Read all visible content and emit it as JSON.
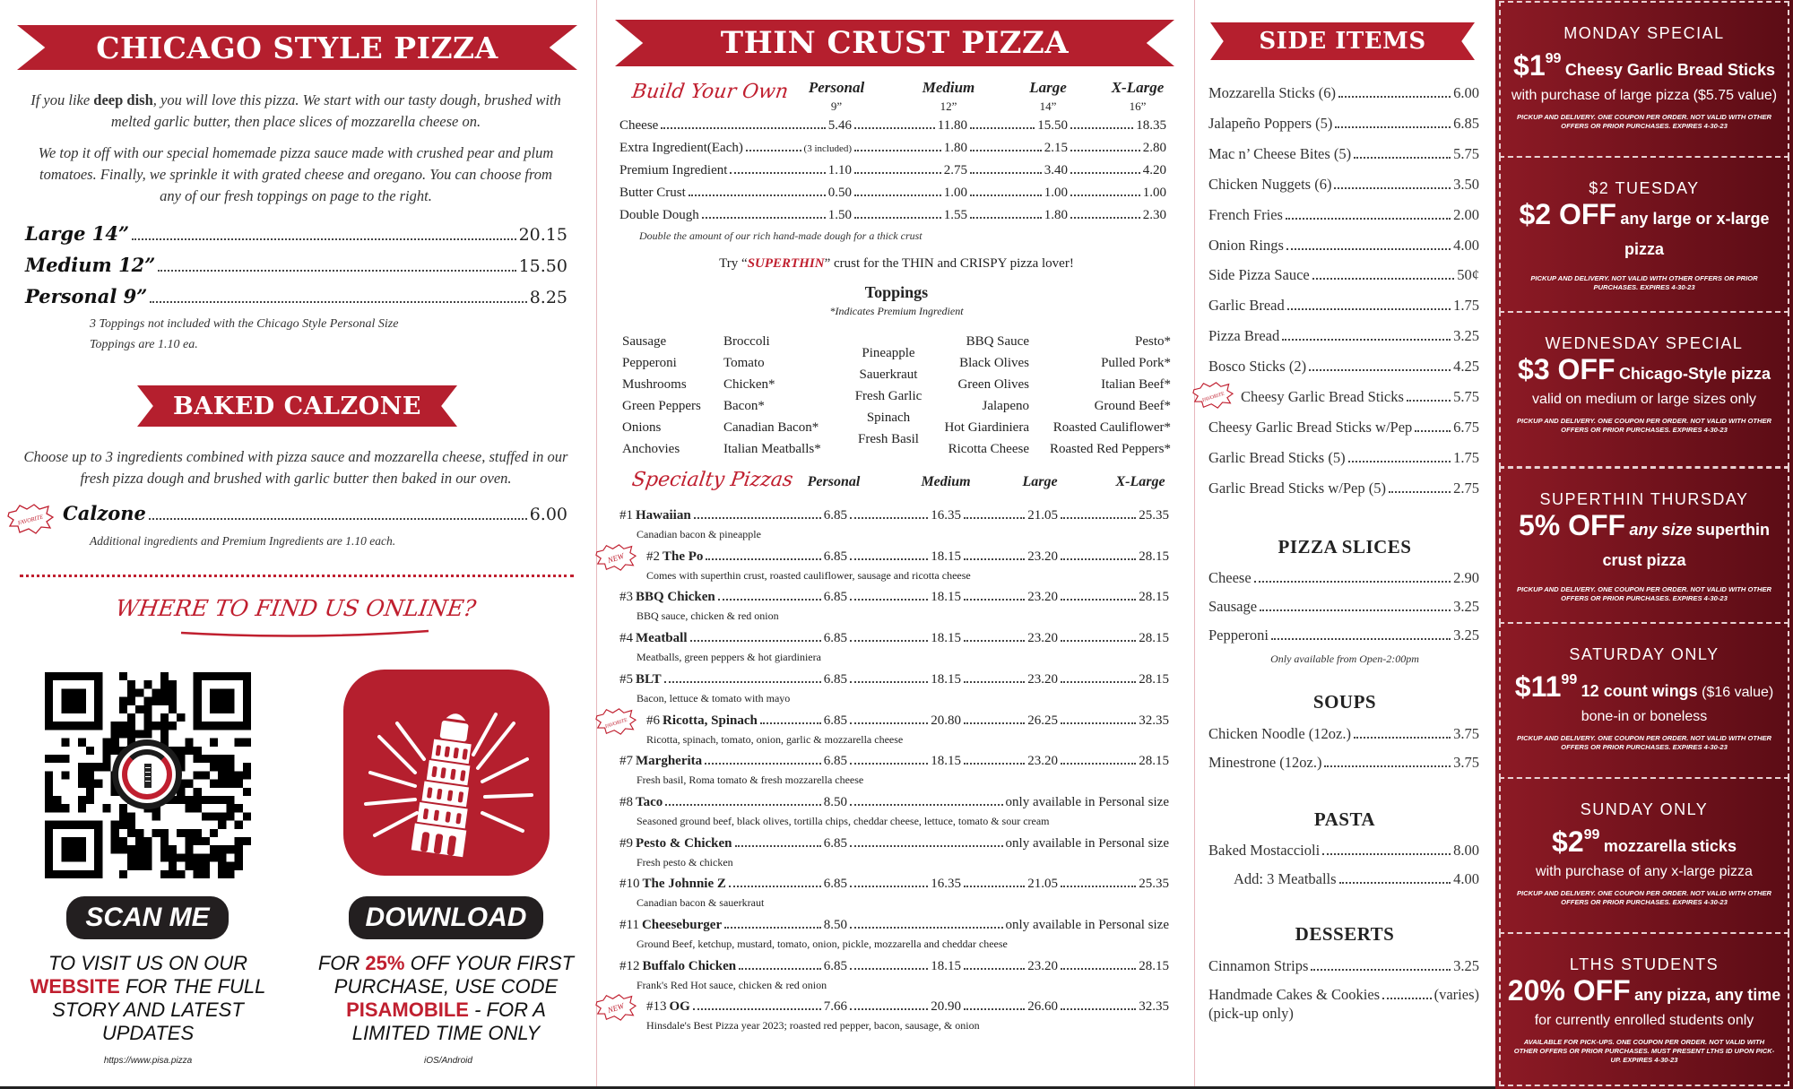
{
  "colors": {
    "brand_red": "#b51f2e",
    "coupon_bg": "#7a1420",
    "text": "#222222"
  },
  "chicago": {
    "title": "CHICAGO STYLE PIZZA",
    "intro1": [
      "If you like ",
      "deep dish",
      ", you will love this pizza. We start with our tasty dough, brushed with melted garlic butter, then place slices of mozzarella cheese on."
    ],
    "intro2": "We top it off with our special homemade pizza sauce made with crushed  pear and plum tomatoes.  Finally, we sprinkle it with grated cheese and oregano.  You can choose from any of our fresh toppings on page to the right.",
    "sizes": [
      {
        "label": "Large 14”",
        "price": "20.15"
      },
      {
        "label": "Medium 12”",
        "price": "15.50"
      },
      {
        "label": "Personal 9”",
        "price": "8.25"
      }
    ],
    "note1": "3 Toppings not included with the Chicago Style Personal Size",
    "note2": "Toppings are 1.10 ea."
  },
  "calzone": {
    "title": "BAKED CALZONE",
    "desc": "Choose up to 3 ingredients combined with pizza sauce and mozzarella cheese, stuffed in our fresh pizza dough and brushed with garlic butter then baked in our oven.",
    "badge": "FAVORITE",
    "label": "Calzone",
    "price": "6.00",
    "note": "Additional ingredients and Premium Ingredients are 1.10 each."
  },
  "online": {
    "heading": "WHERE TO FIND US ONLINE?",
    "qr_logo": "PISA PIZZA • CHICAGO'S THIN CRUST",
    "scan_label": "SCAN ME",
    "scan_text": [
      "TO VISIT US ON OUR ",
      "WEBSITE",
      " FOR THE FULL STORY AND LATEST UPDATES"
    ],
    "url": "https://www.pisa.pizza",
    "download_label": "DOWNLOAD",
    "download_text": [
      "FOR ",
      "25%",
      " OFF YOUR FIRST PURCHASE, USE CODE ",
      "PISAMOBILE",
      " - FOR A LIMITED TIME ONLY"
    ],
    "platforms": "iOS/Android",
    "app_icon": "leaning-tower-icon"
  },
  "thin": {
    "title": "THIN CRUST PIZZA",
    "build_title": "Build Your Own",
    "columns": [
      "Personal",
      "Medium",
      "Large",
      "X-Large"
    ],
    "sizes": [
      "9”",
      "12”",
      "14”",
      "16”"
    ],
    "rows": [
      {
        "label": "Cheese",
        "prices": [
          "5.46",
          "11.80",
          "15.50",
          "18.35"
        ]
      },
      {
        "label": "Extra Ingredient(Each)",
        "prices": [
          "(3 included)",
          "1.80",
          "2.15",
          "2.80"
        ]
      },
      {
        "label": "Premium Ingredient",
        "prices": [
          "1.10",
          "2.75",
          "3.40",
          "4.20"
        ]
      },
      {
        "label": "Butter Crust",
        "prices": [
          "0.50",
          "1.00",
          "1.00",
          "1.00"
        ]
      },
      {
        "label": "Double Dough",
        "prices": [
          "1.50",
          "1.55",
          "1.80",
          "2.30"
        ]
      }
    ],
    "double_note": "Double the amount of our rich hand-made dough for a thick crust",
    "superthin": [
      "Try “",
      "SUPERTHIN",
      "” crust for the THIN and CRISPY pizza lover!"
    ],
    "toppings_title": "Toppings",
    "toppings_note": "*Indicates Premium Ingredient",
    "toppings": [
      [
        "Sausage",
        "Pepperoni",
        "Mushrooms",
        "Green Peppers",
        "Onions",
        "Anchovies"
      ],
      [
        "Broccoli",
        "Tomato",
        "Chicken*",
        "Bacon*",
        "Canadian Bacon*",
        "Italian Meatballs*"
      ],
      [
        "Pineapple",
        "Sauerkraut",
        "Fresh Garlic",
        "Spinach",
        "Fresh Basil"
      ],
      [
        "BBQ Sauce",
        "Black Olives",
        "Green Olives",
        "Jalapeno",
        "Hot Giardiniera",
        "Ricotta Cheese"
      ],
      [
        "Pesto*",
        "Pulled Pork*",
        "Italian Beef*",
        "Ground Beef*",
        "Roasted Cauliflower*",
        "Roasted Red Peppers*"
      ]
    ],
    "specialty_title": "Specialty Pizzas",
    "personal_only": "only available in Personal size",
    "pizzas": [
      {
        "num": "#1",
        "name": "Hawaiian",
        "prices": [
          "6.85",
          "16.35",
          "21.05",
          "25.35"
        ],
        "desc": "Canadian bacon & pineapple"
      },
      {
        "num": "#2",
        "name": "The Po",
        "badge": "NEW",
        "prices": [
          "6.85",
          "18.15",
          "23.20",
          "28.15"
        ],
        "desc": "Comes with superthin crust, roasted cauliflower, sausage and ricotta cheese"
      },
      {
        "num": "#3",
        "name": "BBQ Chicken",
        "prices": [
          "6.85",
          "18.15",
          "23.20",
          "28.15"
        ],
        "desc": "BBQ sauce, chicken & red onion"
      },
      {
        "num": "#4",
        "name": "Meatball",
        "prices": [
          "6.85",
          "18.15",
          "23.20",
          "28.15"
        ],
        "desc": "Meatballs, green peppers & hot giardiniera"
      },
      {
        "num": "#5",
        "name": "BLT",
        "prices": [
          "6.85",
          "18.15",
          "23.20",
          "28.15"
        ],
        "desc": "Bacon, lettuce & tomato with mayo"
      },
      {
        "num": "#6",
        "name": "Ricotta, Spinach",
        "badge": "FAVORITE",
        "prices": [
          "6.85",
          "20.80",
          "26.25",
          "32.35"
        ],
        "desc": "Ricotta, spinach, tomato, onion, garlic & mozzarella cheese"
      },
      {
        "num": "#7",
        "name": "Margherita",
        "prices": [
          "6.85",
          "18.15",
          "23.20",
          "28.15"
        ],
        "desc": "Fresh basil, Roma tomato & fresh mozzarella cheese"
      },
      {
        "num": "#8",
        "name": "Taco",
        "prices": [
          "8.50"
        ],
        "desc": "Seasoned ground beef, black olives, tortilla chips, cheddar cheese, lettuce, tomato & sour cream"
      },
      {
        "num": "#9",
        "name": "Pesto & Chicken",
        "prices": [
          "6.85"
        ],
        "desc": "Fresh pesto & chicken"
      },
      {
        "num": "#10",
        "name": "The Johnnie Z",
        "prices": [
          "6.85",
          "16.35",
          "21.05",
          "25.35"
        ],
        "desc": "Canadian bacon & sauerkraut"
      },
      {
        "num": "#11",
        "name": "Cheeseburger",
        "prices": [
          "8.50"
        ],
        "desc": "Ground Beef, ketchup, mustard, tomato, onion, pickle, mozzarella and cheddar cheese"
      },
      {
        "num": "#12",
        "name": "Buffalo Chicken",
        "prices": [
          "6.85",
          "18.15",
          "23.20",
          "28.15"
        ],
        "desc": "Frank's Red Hot sauce, chicken & red onion"
      },
      {
        "num": "#13",
        "name": "OG",
        "badge": "NEW",
        "prices": [
          "7.66",
          "20.90",
          "26.60",
          "32.35"
        ],
        "desc": "Hinsdale's Best Pizza year 2023; roasted red pepper, bacon, sausage, & onion"
      }
    ]
  },
  "sides": {
    "title": "SIDE ITEMS",
    "items": [
      {
        "label": "Mozzarella Sticks (6)",
        "price": "6.00"
      },
      {
        "label": "Jalapeño Poppers (5)",
        "price": "6.85"
      },
      {
        "label": "Mac n’ Cheese Bites (5)",
        "price": "5.75"
      },
      {
        "label": "Chicken Nuggets (6)",
        "price": "3.50"
      },
      {
        "label": "French Fries",
        "price": "2.00"
      },
      {
        "label": "Onion Rings",
        "price": "4.00"
      },
      {
        "label": "Side Pizza Sauce",
        "price": "50¢"
      },
      {
        "label": "Garlic Bread",
        "price": "1.75"
      },
      {
        "label": "Pizza Bread",
        "price": "3.25"
      },
      {
        "label": "Bosco Sticks (2)",
        "price": "4.25"
      },
      {
        "label": "Cheesy Garlic Bread Sticks",
        "price": "5.75",
        "badge": "FAVORITE"
      },
      {
        "label": "Cheesy Garlic Bread Sticks w/Pep",
        "price": "6.75"
      },
      {
        "label": "Garlic Bread Sticks (5)",
        "price": "1.75"
      },
      {
        "label": "Garlic Bread Sticks w/Pep (5)",
        "price": "2.75"
      }
    ],
    "slices": {
      "title": "PIZZA SLICES",
      "items": [
        {
          "label": "Cheese",
          "price": "2.90"
        },
        {
          "label": "Sausage",
          "price": "3.25"
        },
        {
          "label": "Pepperoni",
          "price": "3.25"
        }
      ],
      "note": "Only available from Open-2:00pm"
    },
    "soups": {
      "title": "SOUPS",
      "items": [
        {
          "label": "Chicken Noodle (12oz.)",
          "price": "3.75"
        },
        {
          "label": "Minestrone (12oz.)",
          "price": "3.75"
        }
      ]
    },
    "pasta": {
      "title": "PASTA",
      "items": [
        {
          "label": "Baked Mostaccioli",
          "price": "8.00"
        },
        {
          "label": "Add: 3 Meatballs",
          "price": "4.00"
        }
      ]
    },
    "desserts": {
      "title": "DESSERTS",
      "items": [
        {
          "label": "Cinnamon Strips",
          "price": "3.25"
        },
        {
          "label": "Handmade Cakes & Cookies",
          "price": "(varies)"
        }
      ],
      "note": "(pick-up only)"
    }
  },
  "coupons": [
    {
      "title": "MONDAY SPECIAL",
      "big": "$1",
      "sup": "99",
      "text": "Cheesy Garlic Bread Sticks",
      "sub": "with purchase of large pizza ($5.75 value)",
      "fine": "PICKUP AND DELIVERY. ONE COUPON PER ORDER. NOT VALID WITH OTHER OFFERS OR PRIOR PURCHASES. EXPIRES 4-30-23"
    },
    {
      "title": "$2 TUESDAY",
      "big": "$2 OFF",
      "text": "any large or x-large pizza",
      "fine": "PICKUP AND DELIVERY. NOT VALID WITH OTHER OFFERS OR PRIOR PURCHASES. EXPIRES 4-30-23"
    },
    {
      "title": "WEDNESDAY SPECIAL",
      "big": "$3 OFF",
      "text": "Chicago-Style pizza",
      "sub": "valid on medium or large sizes only",
      "fine": "PICKUP AND DELIVERY. ONE COUPON PER ORDER. NOT VALID WITH OTHER OFFERS OR PRIOR PURCHASES. EXPIRES 4-30-23"
    },
    {
      "title": "SUPERTHIN THURSDAY",
      "big": "5% OFF",
      "pre": "any size",
      "text": "superthin crust pizza",
      "fine": "PICKUP AND DELIVERY. ONE COUPON PER ORDER. NOT VALID WITH OTHER OFFERS OR PRIOR PURCHASES. EXPIRES 4-30-23"
    },
    {
      "title": "SATURDAY ONLY",
      "big": "$11",
      "sup": "99",
      "text": "12 count wings",
      "extra": "($16 value)",
      "sub": "bone-in or boneless",
      "fine": "PICKUP AND DELIVERY. ONE COUPON PER ORDER. NOT VALID WITH OTHER OFFERS OR PRIOR PURCHASES. EXPIRES 4-30-23"
    },
    {
      "title": "SUNDAY ONLY",
      "big": "$2",
      "sup": "99",
      "text": "mozzarella sticks",
      "sub": "with purchase of any x-large pizza",
      "fine": "PICKUP AND DELIVERY. ONE COUPON PER ORDER. NOT VALID WITH OTHER OFFERS OR PRIOR PURCHASES. EXPIRES 4-30-23"
    },
    {
      "title": "LTHS STUDENTS",
      "big": "20% OFF",
      "text": "any pizza, any time",
      "sub": "for currently enrolled students only",
      "fine": "AVAILABLE FOR PICK-UPS. ONE COUPON PER ORDER. NOT VALID WITH OTHER OFFERS OR PRIOR PURCHASES. MUST PRESENT LTHS ID UPON PICK-UP. EXPIRES 4-30-23"
    }
  ]
}
